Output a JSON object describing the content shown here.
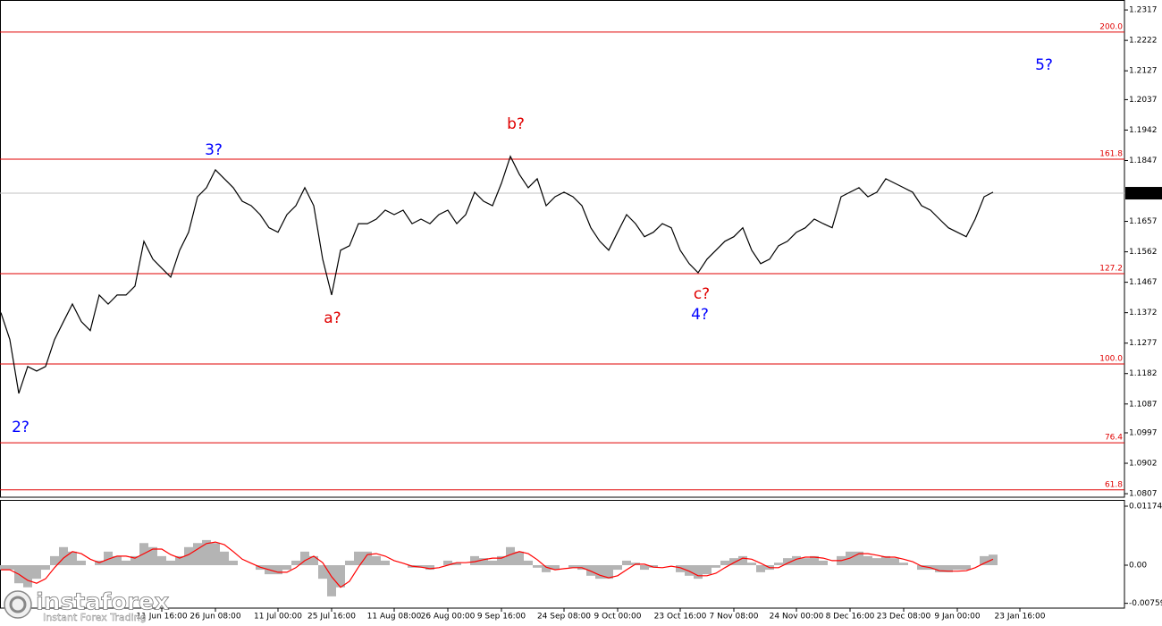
{
  "chart_data": [
    {
      "type": "line",
      "color": "#000000",
      "categories": [
        null,
        null,
        null,
        null,
        null,
        null,
        null,
        null,
        null,
        null,
        null,
        null,
        null,
        null,
        null,
        null,
        null,
        null,
        "11 Jun 16:00",
        null,
        null,
        null,
        null,
        null,
        "26 Jun 08:00",
        null,
        null,
        null,
        null,
        null,
        null,
        "11 Jul 00:00",
        null,
        null,
        null,
        null,
        null,
        "25 Jul 16:00",
        null,
        null,
        null,
        null,
        null,
        null,
        "11 Aug 08:00",
        null,
        null,
        null,
        null,
        null,
        "26 Aug 00:00",
        null,
        null,
        null,
        null,
        null,
        "9 Sep 16:00",
        null,
        null,
        null,
        null,
        null,
        null,
        "24 Sep 08:00",
        null,
        null,
        null,
        null,
        null,
        "9 Oct 00:00",
        null,
        null,
        null,
        null,
        null,
        null,
        "23 Oct 16:00",
        null,
        null,
        null,
        null,
        null,
        "7 Nov 08:00",
        null,
        null,
        null,
        null,
        null,
        null,
        "24 Nov 00:00",
        null,
        null,
        null,
        null,
        null,
        "8 Dec 16:00",
        null,
        null,
        null,
        null,
        null,
        "23 Dec 08:00",
        null,
        null,
        null,
        null,
        null,
        "9 Jan 00:00",
        null,
        null,
        null,
        null,
        null,
        null,
        "23 Jan 16:00",
        null
      ],
      "values": [
        1.1372,
        1.1288,
        1.112,
        1.1204,
        1.119,
        1.1204,
        1.1288,
        1.1344,
        1.1399,
        1.1344,
        1.1316,
        1.1427,
        1.1399,
        1.1427,
        1.1427,
        1.1455,
        1.1595,
        1.1539,
        1.1511,
        1.1483,
        1.1567,
        1.1623,
        1.1734,
        1.1762,
        1.1818,
        1.179,
        1.1762,
        1.172,
        1.1706,
        1.1678,
        1.1637,
        1.1623,
        1.1678,
        1.1706,
        1.1762,
        1.1706,
        1.1539,
        1.1427,
        1.1567,
        1.1581,
        1.165,
        1.165,
        1.1664,
        1.1692,
        1.1678,
        1.1692,
        1.165,
        1.1664,
        1.165,
        1.1678,
        1.1692,
        1.165,
        1.1678,
        1.1748,
        1.172,
        1.1706,
        1.1776,
        1.186,
        1.1804,
        1.1762,
        1.179,
        1.1706,
        1.1734,
        1.1748,
        1.1734,
        1.1706,
        1.1637,
        1.1595,
        1.1567,
        1.1623,
        1.1678,
        1.165,
        1.1609,
        1.1623,
        1.165,
        1.1637,
        1.1567,
        1.1525,
        1.1497,
        1.1539,
        1.1567,
        1.1595,
        1.1609,
        1.1637,
        1.1567,
        1.1525,
        1.1539,
        1.1581,
        1.1595,
        1.1623,
        1.1637,
        1.1664,
        1.165,
        1.1637,
        1.1734,
        1.1748,
        1.1762,
        1.1734,
        1.1748,
        1.179,
        1.1776,
        1.1762,
        1.1748,
        1.1706,
        1.1692,
        1.1664,
        1.1637,
        1.1623,
        1.1609,
        1.1664,
        1.1734,
        1.1748,
        null,
        null,
        null,
        null
      ],
      "ylim": [
        1.0796,
        1.2348
      ],
      "yticks": [
        1.2317,
        1.2222,
        1.2127,
        1.2037,
        1.1942,
        1.1847,
        1.1657,
        1.1562,
        1.1467,
        1.1372,
        1.1277,
        1.1182,
        1.1087,
        1.0997,
        1.0902,
        1.0807
      ],
      "last_price": 1.1745,
      "last_price_color": "#c0c0c0",
      "levels_color": "#e00000",
      "levels": [
        {
          "value": 1.2248,
          "label": "200.0"
        },
        {
          "value": 1.1851,
          "label": "161.8"
        },
        {
          "value": 1.1494,
          "label": "127.2"
        },
        {
          "value": 1.1212,
          "label": "100.0"
        },
        {
          "value": 1.0966,
          "label": "76.4"
        },
        {
          "value": 1.0819,
          "label": "61.8"
        }
      ],
      "annotations": [
        {
          "text": "2?",
          "color": "#0000ff"
        },
        {
          "text": "3?",
          "color": "#0000ff"
        },
        {
          "text": "a?",
          "color": "#e00000"
        },
        {
          "text": "b?",
          "color": "#e00000"
        },
        {
          "text": "c?",
          "color": "#e00000"
        },
        {
          "text": "4?",
          "color": "#0000ff"
        },
        {
          "text": "5?",
          "color": "#0000ff"
        }
      ]
    },
    {
      "type": "macd",
      "histogram": {
        "color": "#b4b4b4",
        "values": [
          -0.0009,
          -0.0009,
          -0.0036,
          -0.0044,
          -0.0027,
          -0.0009,
          0.0018,
          0.0036,
          0.0027,
          0.0009,
          0,
          0.0009,
          0.0027,
          0.0018,
          0.0009,
          0.0018,
          0.0044,
          0.0036,
          0.0018,
          0.0009,
          0.0018,
          0.0036,
          0.0044,
          0.005,
          0.0044,
          0.0027,
          0.0009,
          0,
          0,
          -0.0009,
          -0.0018,
          -0.0018,
          -0.0009,
          0.0009,
          0.0027,
          0.0018,
          -0.0027,
          -0.0062,
          -0.0044,
          0.0009,
          0.0027,
          0.0027,
          0.0018,
          0.0009,
          0,
          0,
          -0.0005,
          -0.0005,
          -0.0009,
          0,
          0.0009,
          0.0005,
          0,
          0.0018,
          0.0014,
          0.0009,
          0.0018,
          0.0036,
          0.0027,
          0.0009,
          -0.0005,
          -0.0014,
          -0.0009,
          0,
          -0.0005,
          -0.0009,
          -0.0021,
          -0.0027,
          -0.0027,
          -0.0009,
          0.0009,
          0.0005,
          -0.0009,
          -0.0005,
          0,
          0,
          -0.0014,
          -0.0021,
          -0.0027,
          -0.0018,
          -0.0005,
          0.0009,
          0.0014,
          0.0018,
          0.0005,
          -0.0014,
          -0.0009,
          0.0005,
          0.0014,
          0.0018,
          0.0014,
          0.0018,
          0.0009,
          0,
          0.0018,
          0.0027,
          0.0027,
          0.0018,
          0.0014,
          0.0018,
          0.0014,
          0.0005,
          0,
          -0.0009,
          -0.0009,
          -0.0014,
          -0.0014,
          -0.0009,
          -0.0009,
          0,
          0.0018,
          0.0021,
          null,
          null,
          null,
          null
        ]
      },
      "signal": {
        "color": "#ff0000",
        "values": [
          -0.0009,
          -0.0009,
          -0.0018,
          -0.003,
          -0.0036,
          -0.0027,
          -0.0005,
          0.0014,
          0.0027,
          0.0023,
          0.0012,
          0.0005,
          0.0012,
          0.0018,
          0.0018,
          0.0014,
          0.0023,
          0.0032,
          0.0032,
          0.0021,
          0.0014,
          0.0021,
          0.0032,
          0.0043,
          0.0046,
          0.0041,
          0.0027,
          0.0012,
          0.0004,
          -0.0004,
          -0.0009,
          -0.0014,
          -0.0014,
          -0.0005,
          0.0009,
          0.0018,
          0.0005,
          -0.0023,
          -0.0044,
          -0.0032,
          -0.0004,
          0.0021,
          0.0023,
          0.0018,
          0.0009,
          0.0004,
          -0.0002,
          -0.0004,
          -0.0007,
          -0.0005,
          0,
          0.0005,
          0.0005,
          0.0007,
          0.0011,
          0.0014,
          0.0014,
          0.0021,
          0.0027,
          0.0023,
          0.0011,
          -0.0004,
          -0.0009,
          -0.0007,
          -0.0005,
          -0.0005,
          -0.0012,
          -0.002,
          -0.0025,
          -0.0021,
          -0.0009,
          0.0002,
          0.0002,
          -0.0004,
          -0.0005,
          -0.0002,
          -0.0005,
          -0.0012,
          -0.0021,
          -0.0021,
          -0.0016,
          -0.0005,
          0.0005,
          0.0014,
          0.0012,
          0.0004,
          -0.0005,
          -0.0005,
          0.0004,
          0.0012,
          0.0016,
          0.0016,
          0.0014,
          0.0009,
          0.0009,
          0.0014,
          0.0023,
          0.0023,
          0.002,
          0.0016,
          0.0016,
          0.0012,
          0.0007,
          -0.0002,
          -0.0005,
          -0.0011,
          -0.0012,
          -0.0012,
          -0.0011,
          -0.0005,
          0.0004,
          0.0012,
          null,
          null,
          null,
          null
        ]
      },
      "ylim": [
        -0.00854,
        0.01281
      ],
      "yticks": [
        0.01174,
        {
          "value": 0,
          "label": "0.00"
        },
        -0.00759
      ]
    }
  ],
  "watermark": {
    "brand": "instaforex",
    "tagline": "Instant Forex Trading"
  }
}
